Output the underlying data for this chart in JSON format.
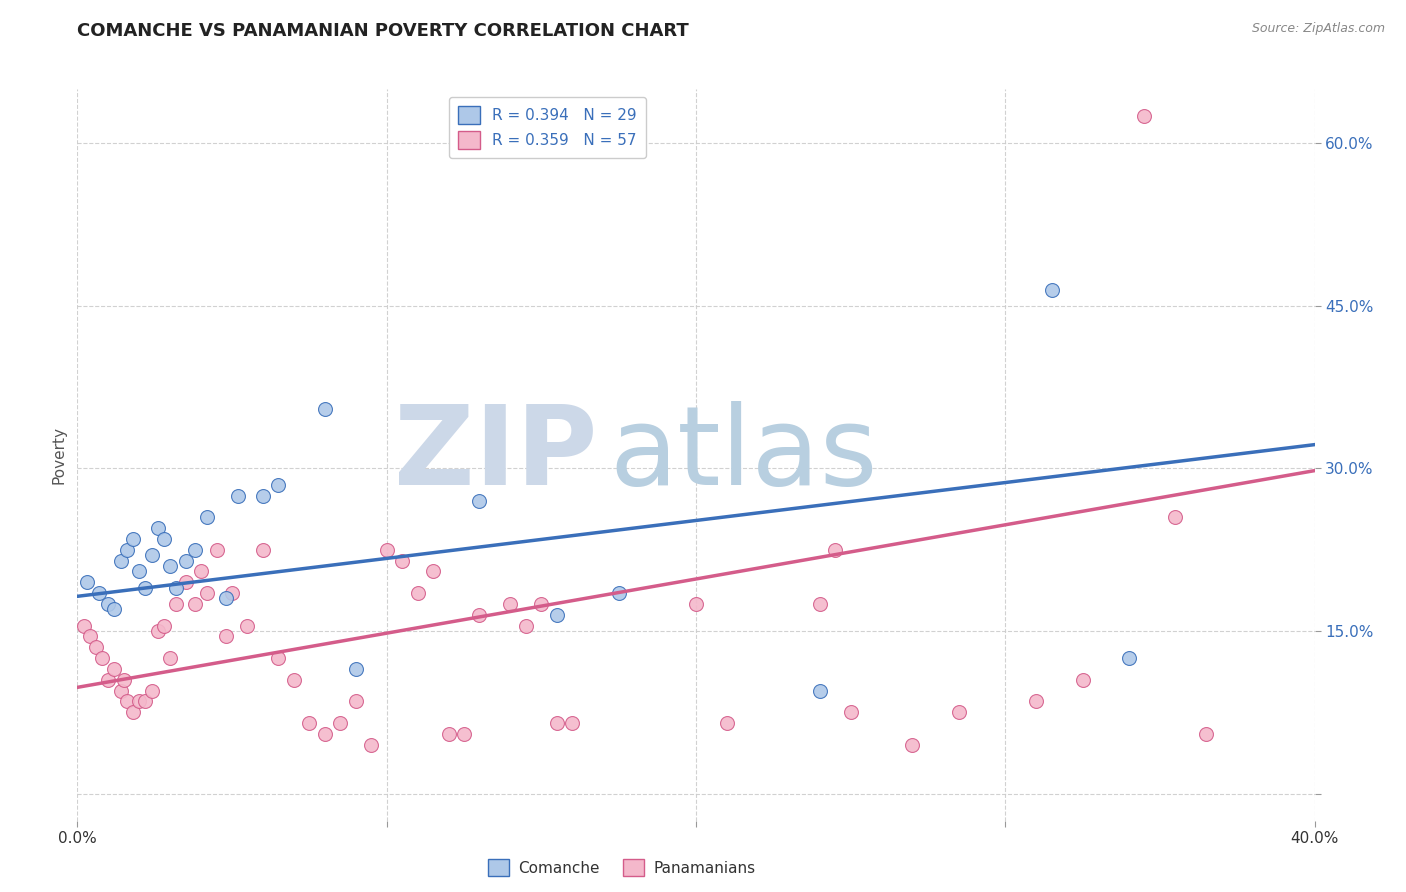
{
  "title": "COMANCHE VS PANAMANIAN POVERTY CORRELATION CHART",
  "source": "Source: ZipAtlas.com",
  "ylabel": "Poverty",
  "comanche_R": 0.394,
  "comanche_N": 29,
  "panamanian_R": 0.359,
  "panamanian_N": 57,
  "comanche_color": "#aec8e8",
  "panamanian_color": "#f4b8cb",
  "comanche_line_color": "#3a6fba",
  "panamanian_line_color": "#d45c8a",
  "watermark_zip_color": "#ccd8e8",
  "watermark_atlas_color": "#b8cfe0",
  "xlim": [
    0.0,
    0.4
  ],
  "ylim": [
    -0.025,
    0.65
  ],
  "xtick_positions": [
    0.0,
    0.1,
    0.2,
    0.3,
    0.4
  ],
  "ytick_positions": [
    0.0,
    0.15,
    0.3,
    0.45,
    0.6
  ],
  "ytick_labels": [
    "",
    "15.0%",
    "30.0%",
    "45.0%",
    "60.0%"
  ],
  "grid_color": "#cccccc",
  "blue_line_x": [
    0.0,
    0.4
  ],
  "blue_line_y": [
    0.182,
    0.322
  ],
  "pink_line_x": [
    0.0,
    0.4
  ],
  "pink_line_y": [
    0.098,
    0.298
  ],
  "comanche_x": [
    0.003,
    0.007,
    0.01,
    0.012,
    0.014,
    0.016,
    0.018,
    0.02,
    0.022,
    0.024,
    0.026,
    0.028,
    0.03,
    0.032,
    0.035,
    0.038,
    0.042,
    0.048,
    0.052,
    0.06,
    0.065,
    0.08,
    0.09,
    0.13,
    0.155,
    0.175,
    0.24,
    0.315,
    0.34
  ],
  "comanche_y": [
    0.195,
    0.185,
    0.175,
    0.17,
    0.215,
    0.225,
    0.235,
    0.205,
    0.19,
    0.22,
    0.245,
    0.235,
    0.21,
    0.19,
    0.215,
    0.225,
    0.255,
    0.18,
    0.275,
    0.275,
    0.285,
    0.355,
    0.115,
    0.27,
    0.165,
    0.185,
    0.095,
    0.465,
    0.125
  ],
  "panamanian_x": [
    0.002,
    0.004,
    0.006,
    0.008,
    0.01,
    0.012,
    0.014,
    0.015,
    0.016,
    0.018,
    0.02,
    0.022,
    0.024,
    0.026,
    0.028,
    0.03,
    0.032,
    0.035,
    0.038,
    0.04,
    0.042,
    0.045,
    0.048,
    0.05,
    0.055,
    0.06,
    0.065,
    0.07,
    0.075,
    0.08,
    0.085,
    0.09,
    0.095,
    0.1,
    0.105,
    0.11,
    0.115,
    0.12,
    0.125,
    0.13,
    0.14,
    0.145,
    0.15,
    0.155,
    0.16,
    0.2,
    0.21,
    0.24,
    0.245,
    0.25,
    0.27,
    0.285,
    0.31,
    0.325,
    0.345,
    0.355,
    0.365
  ],
  "panamanian_y": [
    0.155,
    0.145,
    0.135,
    0.125,
    0.105,
    0.115,
    0.095,
    0.105,
    0.085,
    0.075,
    0.085,
    0.085,
    0.095,
    0.15,
    0.155,
    0.125,
    0.175,
    0.195,
    0.175,
    0.205,
    0.185,
    0.225,
    0.145,
    0.185,
    0.155,
    0.225,
    0.125,
    0.105,
    0.065,
    0.055,
    0.065,
    0.085,
    0.045,
    0.225,
    0.215,
    0.185,
    0.205,
    0.055,
    0.055,
    0.165,
    0.175,
    0.155,
    0.175,
    0.065,
    0.065,
    0.175,
    0.065,
    0.175,
    0.225,
    0.075,
    0.045,
    0.075,
    0.085,
    0.105,
    0.625,
    0.255,
    0.055
  ]
}
